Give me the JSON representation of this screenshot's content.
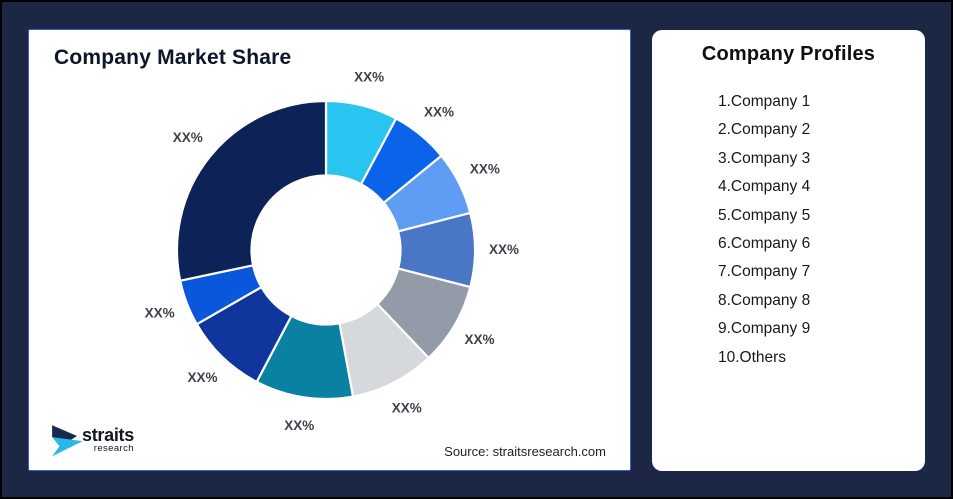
{
  "background_color": "#1c2745",
  "left_panel": {
    "title": "Company Market Share",
    "source": "Source: straitsresearch.com",
    "logo": {
      "name": "straits",
      "sub": "research",
      "mark_navy": "#16294e",
      "mark_cyan": "#29b8ea"
    }
  },
  "profiles": {
    "title": "Company Profiles",
    "items": [
      "1.Company 1",
      "2.Company 2",
      "3.Company 3",
      "4.Company 4",
      "5.Company 5",
      "6.Company 6",
      "7.Company 7",
      "8.Company 8",
      "9.Company 9",
      "10.Others"
    ]
  },
  "chart_data": {
    "type": "donut",
    "title": "Company Market Share",
    "hole_ratio": 0.5,
    "legend_position": "none",
    "labels": [
      "XX%",
      "XX%",
      "XX%",
      "XX%",
      "XX%",
      "XX%",
      "XX%",
      "XX%",
      "XX%",
      "XX%"
    ],
    "values": [
      7.8,
      6.3,
      6.9,
      8.0,
      8.9,
      9.2,
      10.6,
      9.0,
      5.0,
      28.3
    ],
    "colors": [
      "#2ac4f1",
      "#0a63e9",
      "#5f9cf4",
      "#4a76c6",
      "#949ba8",
      "#d5d8dd",
      "#0a80a3",
      "#10359c",
      "#0b57dc",
      "#0d2256"
    ],
    "label_color": "#3d424a",
    "slice_stroke": "#ffffff"
  }
}
